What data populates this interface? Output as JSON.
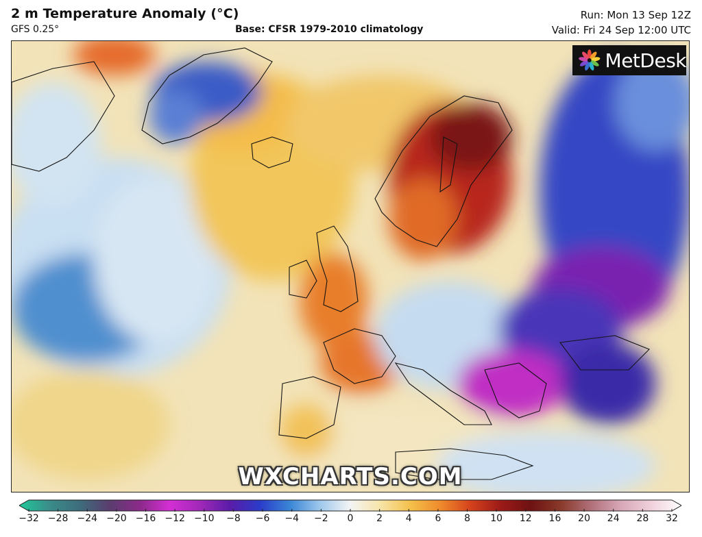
{
  "header": {
    "title": "2 m Temperature Anomaly (°C)",
    "model": "GFS 0.25°",
    "base": "Base: CFSR 1979-2010 climatology",
    "run": "Run: Mon 13 Sep 12Z",
    "valid": "Valid: Fri 24 Sep 12:00 UTC"
  },
  "map": {
    "brand": "MetDesk",
    "brand_icon": "metdesk-flower-icon",
    "watermark": "WXCHARTS.COM"
  },
  "colorbar": {
    "ticks": [
      "−32",
      "−28",
      "−24",
      "−20",
      "−16",
      "−12",
      "−10",
      "−8",
      "−6",
      "−4",
      "−2",
      "0",
      "2",
      "4",
      "6",
      "8",
      "10",
      "12",
      "16",
      "20",
      "24",
      "28",
      "32"
    ],
    "colors": [
      "#20c99a",
      "#3a8c8a",
      "#3d6d7c",
      "#5a3d6e",
      "#8b2a8a",
      "#d42fd4",
      "#a128b8",
      "#5a1ca8",
      "#2a3cc9",
      "#3a86d6",
      "#9fc8ec",
      "#f4f4f4",
      "#f7e4a8",
      "#f4c04a",
      "#ef8a2c",
      "#d4421c",
      "#9c1a18",
      "#6e1212",
      "#8a3a2a",
      "#b0707a",
      "#d8a8b8",
      "#f0d0dc",
      "#ffffff"
    ]
  }
}
